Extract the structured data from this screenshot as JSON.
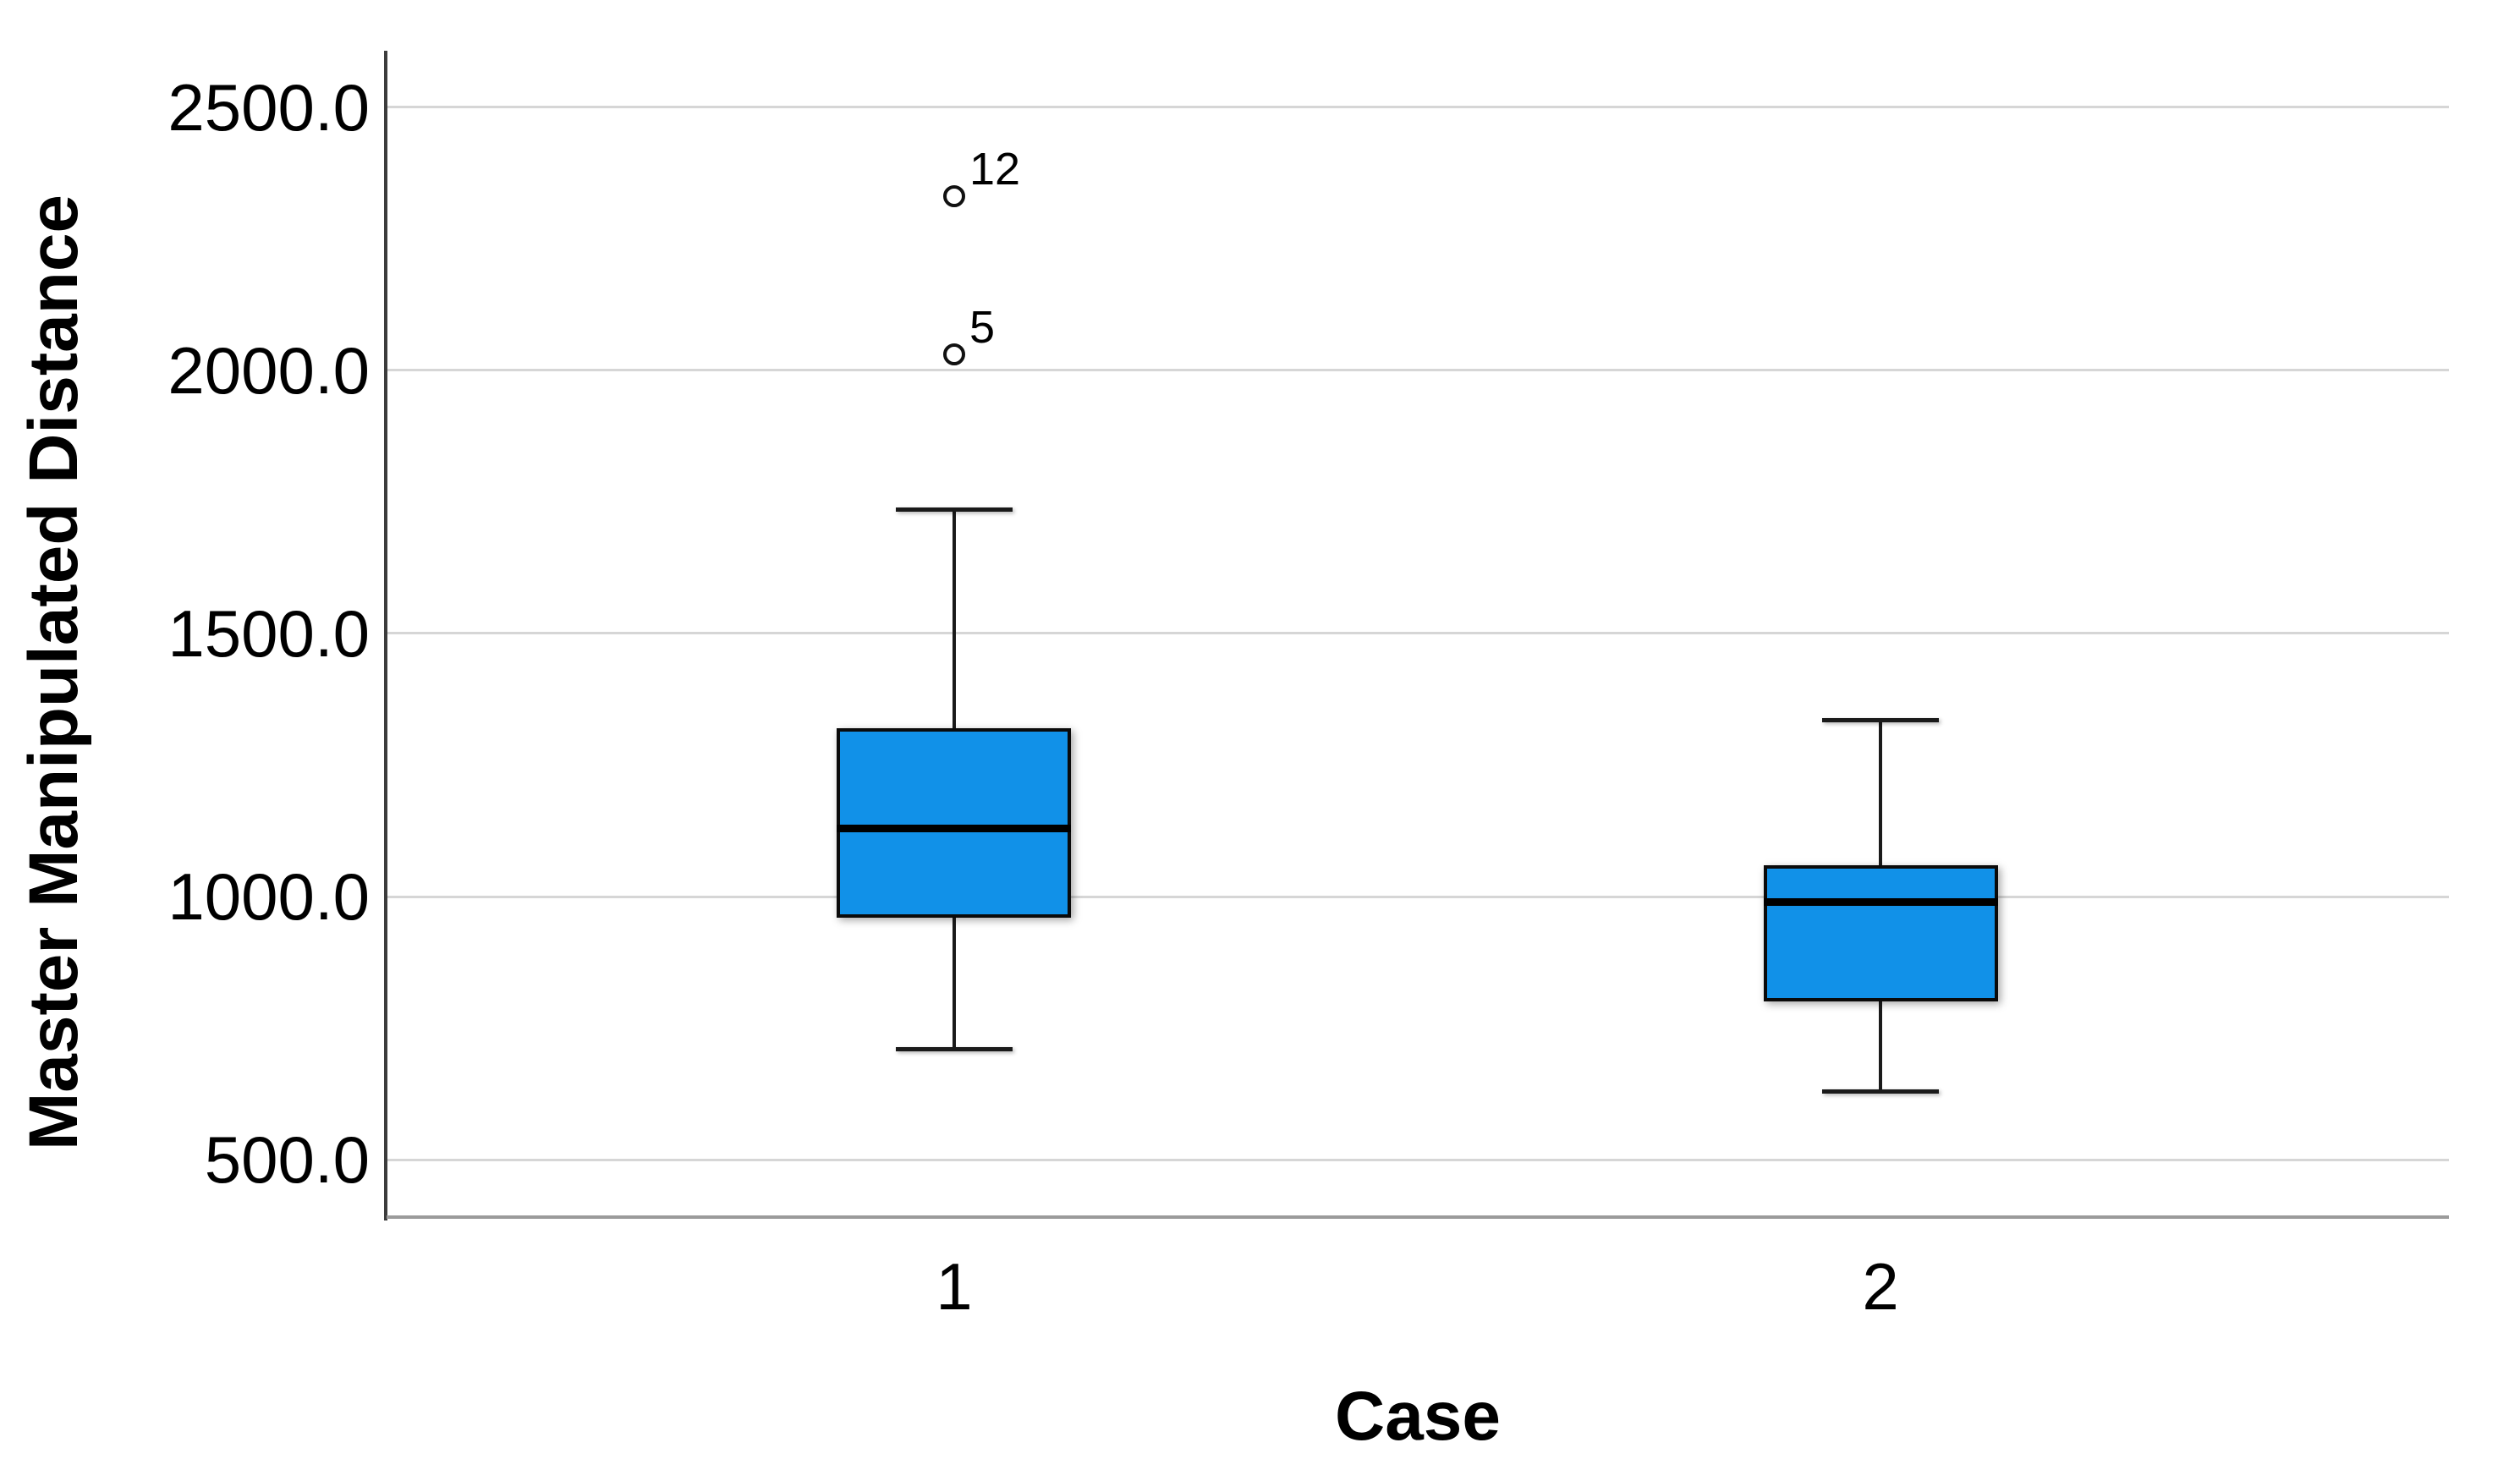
{
  "chart_data": {
    "type": "boxplot",
    "title": "",
    "xlabel": "Case",
    "ylabel": "Master Manipulated Distance",
    "categories": [
      "1",
      "2"
    ],
    "series": [
      {
        "category": "1",
        "whisker_low": 710,
        "q1": 960,
        "median": 1130,
        "q3": 1320,
        "whisker_high": 1735,
        "outliers": [
          {
            "value": 2030,
            "label": "5"
          },
          {
            "value": 2330,
            "label": "12"
          }
        ]
      },
      {
        "category": "2",
        "whisker_low": 630,
        "q1": 800,
        "median": 990,
        "q3": 1060,
        "whisker_high": 1335,
        "outliers": []
      }
    ],
    "y_ticks": [
      500,
      1000,
      1500,
      2000,
      2500
    ],
    "y_tick_labels": [
      "500.0",
      "1000.0",
      "1500.0",
      "2000.0",
      "2500.0"
    ],
    "ylim": [
      391,
      2607
    ],
    "grid": "horizontal-only",
    "legend": "none",
    "colors": {
      "box_fill": "#1191E8",
      "box_border": "#0a0a0a",
      "median": "#000000",
      "whisker": "#1a1a1a",
      "gridline": "#d6d6d6",
      "x_axis_line": "#9b9b9b",
      "y_axis_line": "#3c3c3c",
      "background": "#ffffff",
      "text": "#000000"
    }
  }
}
